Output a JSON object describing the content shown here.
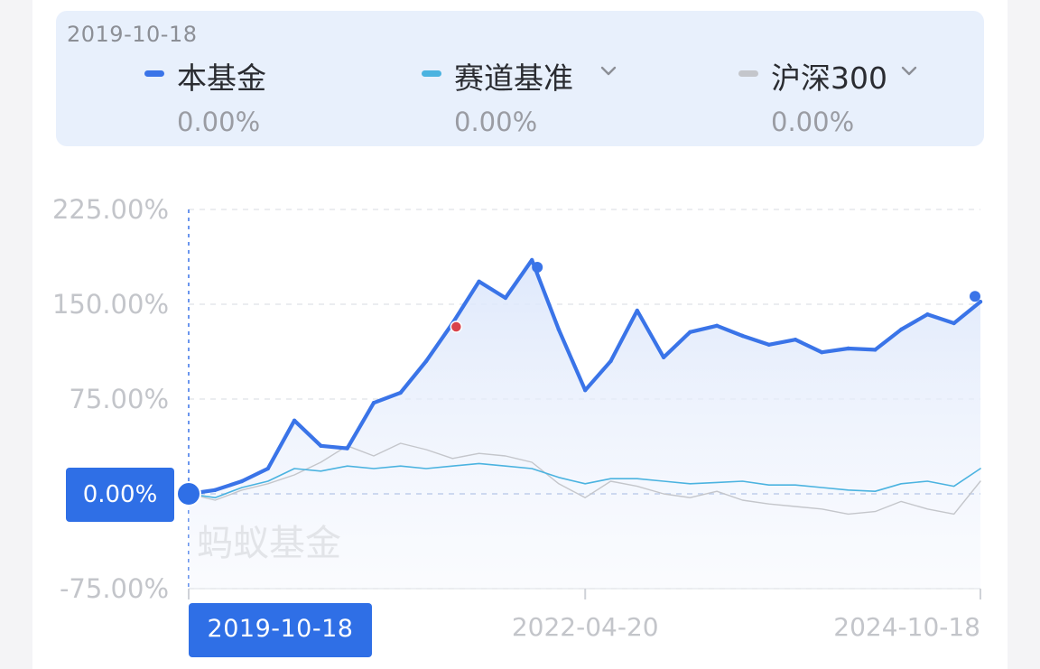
{
  "legend": {
    "date": "2019-10-18",
    "items": [
      {
        "name": "本基金",
        "value": "0.00%",
        "color": "#3a74e8",
        "dropdown": false
      },
      {
        "name": "赛道基准",
        "value": "0.00%",
        "color": "#4bb3e0",
        "dropdown": true
      },
      {
        "name": "沪深300",
        "value": "0.00%",
        "color": "#c4c6cb",
        "dropdown": true
      }
    ]
  },
  "cursor": {
    "value_label": "0.00%",
    "date_label": "2019-10-18"
  },
  "watermark": "蚂蚁基金",
  "chart_data": {
    "type": "line",
    "y_tick_labels": [
      "225.00%",
      "150.00%",
      "75.00%",
      "0.00%",
      "-75.00%"
    ],
    "y_tick_values": [
      225,
      150,
      75,
      0,
      -75
    ],
    "ylim": [
      -75,
      225
    ],
    "x_tick_labels": [
      "2019-10-18",
      "2022-04-20",
      "2024-10-18"
    ],
    "grid": true,
    "x": [
      "2019-10-18",
      "2019-12-18",
      "2020-02-18",
      "2020-04-18",
      "2020-06-18",
      "2020-08-18",
      "2020-10-18",
      "2020-12-18",
      "2021-02-18",
      "2021-04-18",
      "2021-06-18",
      "2021-08-18",
      "2021-10-18",
      "2021-12-18",
      "2022-02-18",
      "2022-04-20",
      "2022-06-18",
      "2022-08-18",
      "2022-10-18",
      "2022-12-18",
      "2023-02-18",
      "2023-04-18",
      "2023-06-18",
      "2023-08-18",
      "2023-10-18",
      "2023-12-18",
      "2024-02-18",
      "2024-04-18",
      "2024-06-18",
      "2024-08-18",
      "2024-10-18"
    ],
    "series": [
      {
        "name": "本基金",
        "color": "#3a74e8",
        "values": [
          0,
          3,
          10,
          20,
          58,
          38,
          36,
          72,
          80,
          105,
          135,
          168,
          155,
          185,
          130,
          82,
          105,
          145,
          108,
          128,
          133,
          125,
          118,
          122,
          112,
          115,
          114,
          130,
          142,
          135,
          152
        ]
      },
      {
        "name": "赛道基准",
        "color": "#4bb3e0",
        "values": [
          0,
          -3,
          5,
          10,
          20,
          18,
          22,
          20,
          22,
          20,
          22,
          24,
          22,
          20,
          13,
          8,
          12,
          12,
          10,
          8,
          9,
          10,
          7,
          7,
          5,
          3,
          2,
          8,
          10,
          6,
          20
        ]
      },
      {
        "name": "沪深300",
        "color": "#c4c6cb",
        "values": [
          0,
          -5,
          3,
          8,
          15,
          25,
          38,
          30,
          40,
          35,
          28,
          32,
          30,
          25,
          8,
          -3,
          10,
          6,
          0,
          -3,
          2,
          -5,
          -8,
          -10,
          -12,
          -16,
          -14,
          -6,
          -12,
          -16,
          10
        ]
      }
    ]
  }
}
